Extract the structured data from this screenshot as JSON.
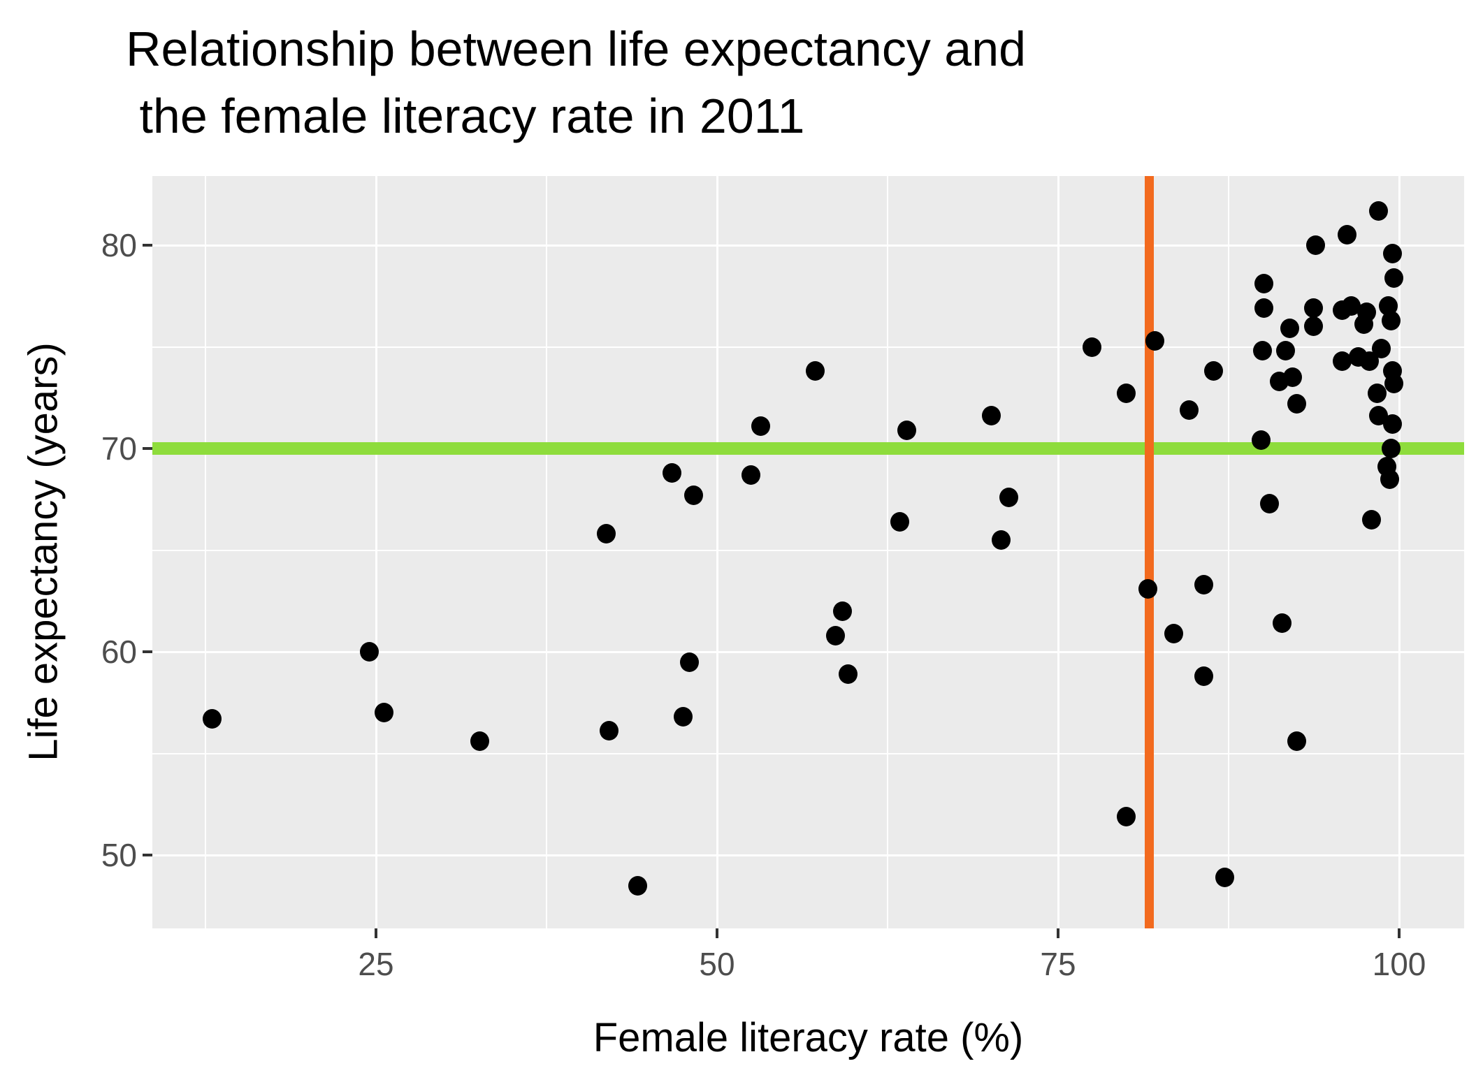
{
  "title": {
    "line1": "Relationship between life expectancy and",
    "line2": " the female literacy rate in 2011"
  },
  "axes": {
    "x": {
      "label": "Female literacy rate (%)",
      "major_ticks": [
        25,
        50,
        75,
        100
      ],
      "minor_ticks": [
        12.5,
        37.5,
        62.5,
        87.5
      ],
      "range": [
        8.6,
        104.4
      ]
    },
    "y": {
      "label": "Life expectancy (years)",
      "major_ticks": [
        50,
        60,
        70,
        80
      ],
      "minor_ticks": [
        55,
        65,
        75
      ],
      "range": [
        46.6,
        83.4
      ]
    }
  },
  "style": {
    "panel_background": "#EBEBEB",
    "gridline_color": "#FFFFFF",
    "point_color": "#000000",
    "tick_label_color": "#4D4D4D",
    "hline_color": "#8EDC3C",
    "vline_color": "#F26A1E"
  },
  "chart_data": {
    "type": "scatter",
    "title": "Relationship between life expectancy and the female literacy rate in 2011",
    "xlabel": "Female literacy rate (%)",
    "ylabel": "Life expectancy (years)",
    "xlim": [
      8.6,
      104.4
    ],
    "ylim": [
      46.6,
      83.4
    ],
    "grid": "on",
    "legend": "none",
    "reference_lines": {
      "horizontal": {
        "y": 70,
        "color": "#8EDC3C"
      },
      "vertical": {
        "x": 81.7,
        "color": "#F26A1E"
      }
    },
    "points": [
      [
        13.0,
        56.7
      ],
      [
        24.5,
        60.0
      ],
      [
        25.6,
        57.0
      ],
      [
        32.6,
        55.6
      ],
      [
        42.1,
        56.1
      ],
      [
        41.9,
        65.8
      ],
      [
        44.2,
        48.5
      ],
      [
        46.7,
        68.8
      ],
      [
        47.5,
        56.8
      ],
      [
        48.0,
        59.5
      ],
      [
        48.3,
        67.7
      ],
      [
        52.5,
        68.7
      ],
      [
        53.2,
        71.1
      ],
      [
        57.2,
        73.8
      ],
      [
        58.7,
        60.8
      ],
      [
        59.2,
        62.0
      ],
      [
        59.6,
        58.9
      ],
      [
        63.4,
        66.4
      ],
      [
        63.9,
        70.9
      ],
      [
        70.1,
        71.6
      ],
      [
        70.8,
        65.5
      ],
      [
        71.4,
        67.6
      ],
      [
        77.5,
        75.0
      ],
      [
        80.0,
        72.7
      ],
      [
        80.0,
        51.9
      ],
      [
        81.6,
        63.1
      ],
      [
        82.1,
        75.3
      ],
      [
        83.5,
        60.9
      ],
      [
        84.6,
        71.9
      ],
      [
        85.7,
        63.3
      ],
      [
        85.7,
        58.8
      ],
      [
        86.4,
        73.8
      ],
      [
        87.2,
        48.9
      ],
      [
        89.9,
        70.4
      ],
      [
        90.0,
        74.8
      ],
      [
        90.1,
        78.1
      ],
      [
        90.1,
        76.9
      ],
      [
        90.5,
        67.3
      ],
      [
        91.2,
        73.3
      ],
      [
        91.4,
        61.4
      ],
      [
        91.7,
        74.8
      ],
      [
        92.0,
        75.9
      ],
      [
        92.2,
        73.5
      ],
      [
        92.5,
        72.2
      ],
      [
        92.5,
        55.6
      ],
      [
        93.7,
        76.9
      ],
      [
        93.7,
        76.0
      ],
      [
        93.9,
        80.0
      ],
      [
        95.8,
        76.8
      ],
      [
        95.8,
        74.3
      ],
      [
        96.2,
        80.5
      ],
      [
        96.5,
        77.0
      ],
      [
        97.0,
        74.5
      ],
      [
        97.4,
        76.1
      ],
      [
        97.6,
        76.7
      ],
      [
        97.8,
        74.3
      ],
      [
        98.0,
        66.5
      ],
      [
        98.4,
        72.7
      ],
      [
        98.5,
        81.7
      ],
      [
        98.5,
        71.6
      ],
      [
        98.7,
        74.9
      ],
      [
        99.1,
        69.1
      ],
      [
        99.2,
        77.0
      ],
      [
        99.3,
        68.5
      ],
      [
        99.4,
        76.3
      ],
      [
        99.4,
        70.0
      ],
      [
        99.5,
        79.6
      ],
      [
        99.5,
        73.8
      ],
      [
        99.5,
        71.2
      ],
      [
        99.6,
        78.4
      ],
      [
        99.6,
        73.2
      ]
    ]
  }
}
